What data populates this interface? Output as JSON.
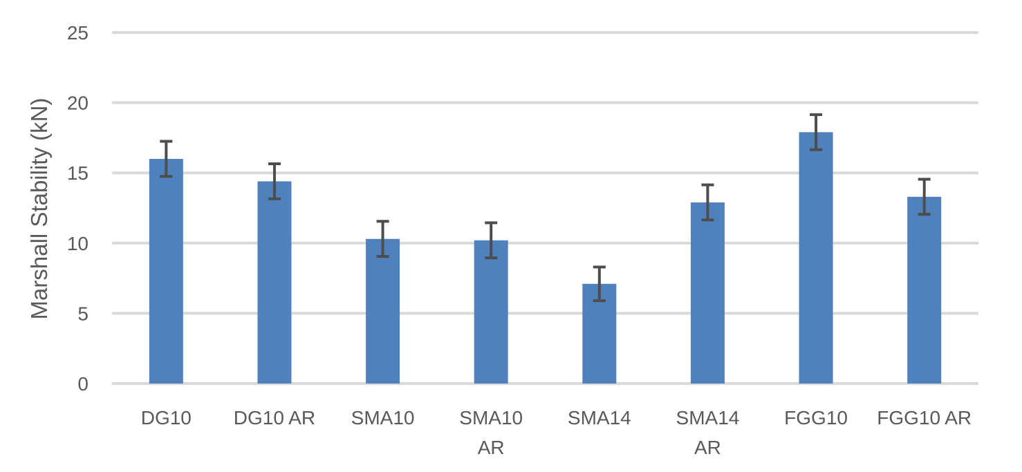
{
  "chart_data": {
    "type": "bar",
    "title": "",
    "xlabel": "",
    "ylabel": "Marshall Stability (kN)",
    "ylim": [
      0,
      25
    ],
    "yticks": [
      0,
      5,
      10,
      15,
      20,
      25
    ],
    "grid": true,
    "legend": "none",
    "categories": [
      [
        "DG10"
      ],
      [
        "DG10 AR"
      ],
      [
        "SMA10"
      ],
      [
        "SMA10",
        "AR"
      ],
      [
        "SMA14"
      ],
      [
        "SMA14",
        "AR"
      ],
      [
        "FGG10"
      ],
      [
        "FGG10 AR"
      ]
    ],
    "series": [
      {
        "name": "Marshall Stability",
        "values": [
          16.0,
          14.4,
          10.3,
          10.2,
          7.1,
          12.9,
          17.9,
          13.3
        ],
        "error": [
          1.25,
          1.25,
          1.25,
          1.25,
          1.2,
          1.25,
          1.25,
          1.25
        ]
      }
    ],
    "colors": {
      "bar": "#4F81BD",
      "error_bar": "#4D4D4D",
      "grid": "#D9D9D9",
      "text": "#595959"
    }
  }
}
